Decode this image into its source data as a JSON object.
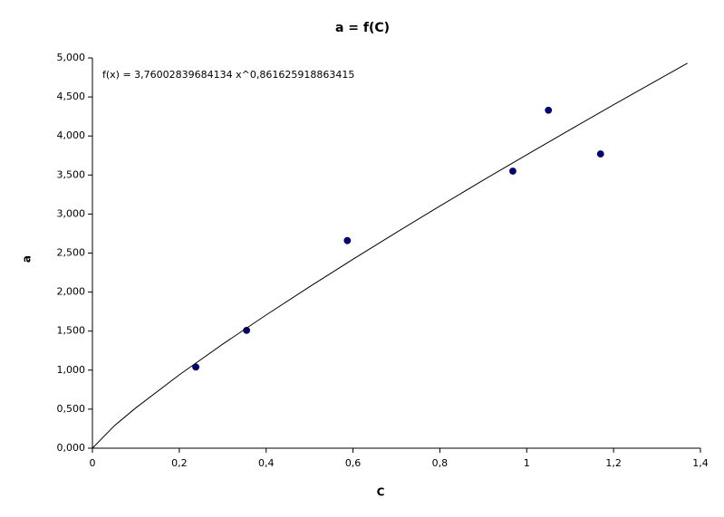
{
  "chart_data": {
    "type": "scatter",
    "title": "a = f(C)",
    "x_label": "C",
    "y_label": "a",
    "annotation": "f(x) = 3,76002839684134 x^0,861625918863415",
    "xlim": [
      0,
      1.4
    ],
    "ylim": [
      0,
      5
    ],
    "xticks": [
      0,
      {
        "value": 0.2,
        "label": "0,2"
      },
      {
        "value": 0.4,
        "label": "0,4"
      },
      {
        "value": 0.6,
        "label": "0,6"
      },
      {
        "value": 0.8,
        "label": "0,8"
      },
      1,
      {
        "value": 1.2,
        "label": "1,2"
      },
      {
        "value": 1.4,
        "label": "1,4"
      }
    ],
    "yticks": [
      {
        "value": 0,
        "label": "0,000"
      },
      {
        "value": 0.5,
        "label": "0,500"
      },
      {
        "value": 1,
        "label": "1,000"
      },
      {
        "value": 1.5,
        "label": "1,500"
      },
      {
        "value": 2,
        "label": "2,000"
      },
      {
        "value": 2.5,
        "label": "2,500"
      },
      {
        "value": 3,
        "label": "3,000"
      },
      {
        "value": 3.5,
        "label": "3,500"
      },
      {
        "value": 4,
        "label": "4,000"
      },
      {
        "value": 4.5,
        "label": "4,500"
      },
      {
        "value": 5,
        "label": "5,000"
      }
    ],
    "grid": false,
    "series": [
      {
        "type": "scatter",
        "color": "#000080",
        "x": [
          0.238,
          0.355,
          0.587,
          0.968,
          1.05,
          1.17
        ],
        "values": [
          1.04,
          1.51,
          2.66,
          3.55,
          4.33,
          3.77
        ]
      },
      {
        "type": "line",
        "color": "#000000",
        "x": [
          0,
          0.05,
          0.1,
          0.2,
          0.3,
          0.4,
          0.5,
          0.6,
          0.7,
          0.8,
          0.9,
          1.0,
          1.1,
          1.2,
          1.3,
          1.37
        ],
        "values": [
          0,
          0.285,
          0.517,
          0.94,
          1.333,
          1.707,
          2.069,
          2.421,
          2.765,
          3.102,
          3.434,
          3.76,
          4.082,
          4.4,
          4.714,
          4.932
        ]
      }
    ]
  }
}
